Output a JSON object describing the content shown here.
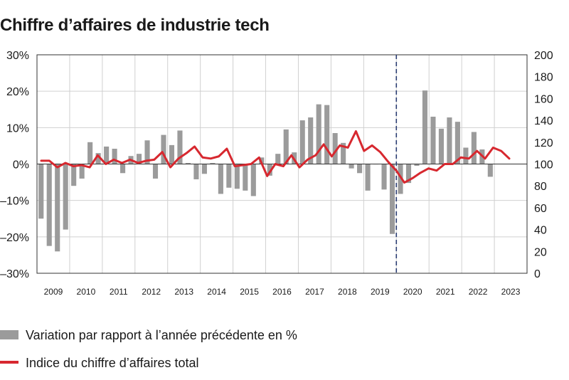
{
  "chart_data": {
    "type": "bar+line",
    "title": "Chiffre d’affaires de industrie tech",
    "colors": {
      "bars": "#9b9b9b",
      "line": "#d7282f",
      "grid": "#d0d0d0",
      "divider": "#2c3e73",
      "axis": "#333333"
    },
    "left_axis": {
      "ylim": [
        -30,
        30
      ],
      "ticks": [
        30,
        20,
        10,
        0,
        -10,
        -20,
        -30
      ],
      "tick_labels": [
        "30%",
        "20%",
        "10%",
        "0%",
        "–10%",
        "–20%",
        "–30%"
      ]
    },
    "right_axis": {
      "ylim": [
        0,
        200
      ],
      "ticks": [
        200,
        180,
        160,
        140,
        120,
        100,
        80,
        60,
        40,
        20,
        0
      ],
      "tick_labels": [
        "200",
        "180",
        "160",
        "140",
        "120",
        "100",
        "80",
        "60",
        "40",
        "20",
        "0"
      ]
    },
    "years": [
      "2009",
      "2010",
      "2011",
      "2012",
      "2013",
      "2014",
      "2015",
      "2016",
      "2017",
      "2018",
      "2019",
      "2020",
      "2021",
      "2022",
      "2023"
    ],
    "periods_per_year": 4,
    "divider_after_period": 44,
    "series": [
      {
        "name": "Variation par rapport à l’année précédente en %",
        "kind": "bar",
        "axis": "left",
        "values": [
          -15,
          -22.5,
          -24,
          -18,
          -6,
          -4,
          6,
          3,
          4.8,
          4.2,
          -2.5,
          2.2,
          2.8,
          6.5,
          -4,
          8,
          5.2,
          9.2,
          0.3,
          -4.2,
          -2.7,
          0.3,
          -8.2,
          -6.5,
          -6.8,
          -7.3,
          -8.8,
          1.8,
          -3.2,
          2.8,
          9.5,
          3.2,
          12,
          12.8,
          16.4,
          16.2,
          8.5,
          5.8,
          -1.2,
          -2.5,
          -7.3,
          0,
          -7,
          -19.2,
          -8.2,
          -5.2,
          -0.5,
          20.2,
          13,
          9.7,
          12.8,
          11.6,
          4.5,
          8.8,
          4,
          -3.5
        ]
      },
      {
        "name": "Indice du chiffre d’affaires total",
        "kind": "line",
        "axis": "right",
        "values": [
          103,
          103,
          97,
          101,
          98,
          99,
          97,
          108,
          100,
          104,
          101,
          104,
          101,
          103,
          104,
          111,
          97,
          105,
          110,
          116,
          106,
          105,
          107,
          114,
          98,
          99,
          100,
          106,
          89,
          100,
          98,
          108,
          97,
          104,
          108,
          118,
          107,
          117,
          115,
          130,
          112,
          117,
          111,
          102,
          94,
          83,
          87,
          92,
          96,
          94,
          100,
          100,
          106,
          105,
          112,
          105,
          115,
          112,
          105
        ]
      }
    ],
    "legend_position": "bottom-left"
  }
}
